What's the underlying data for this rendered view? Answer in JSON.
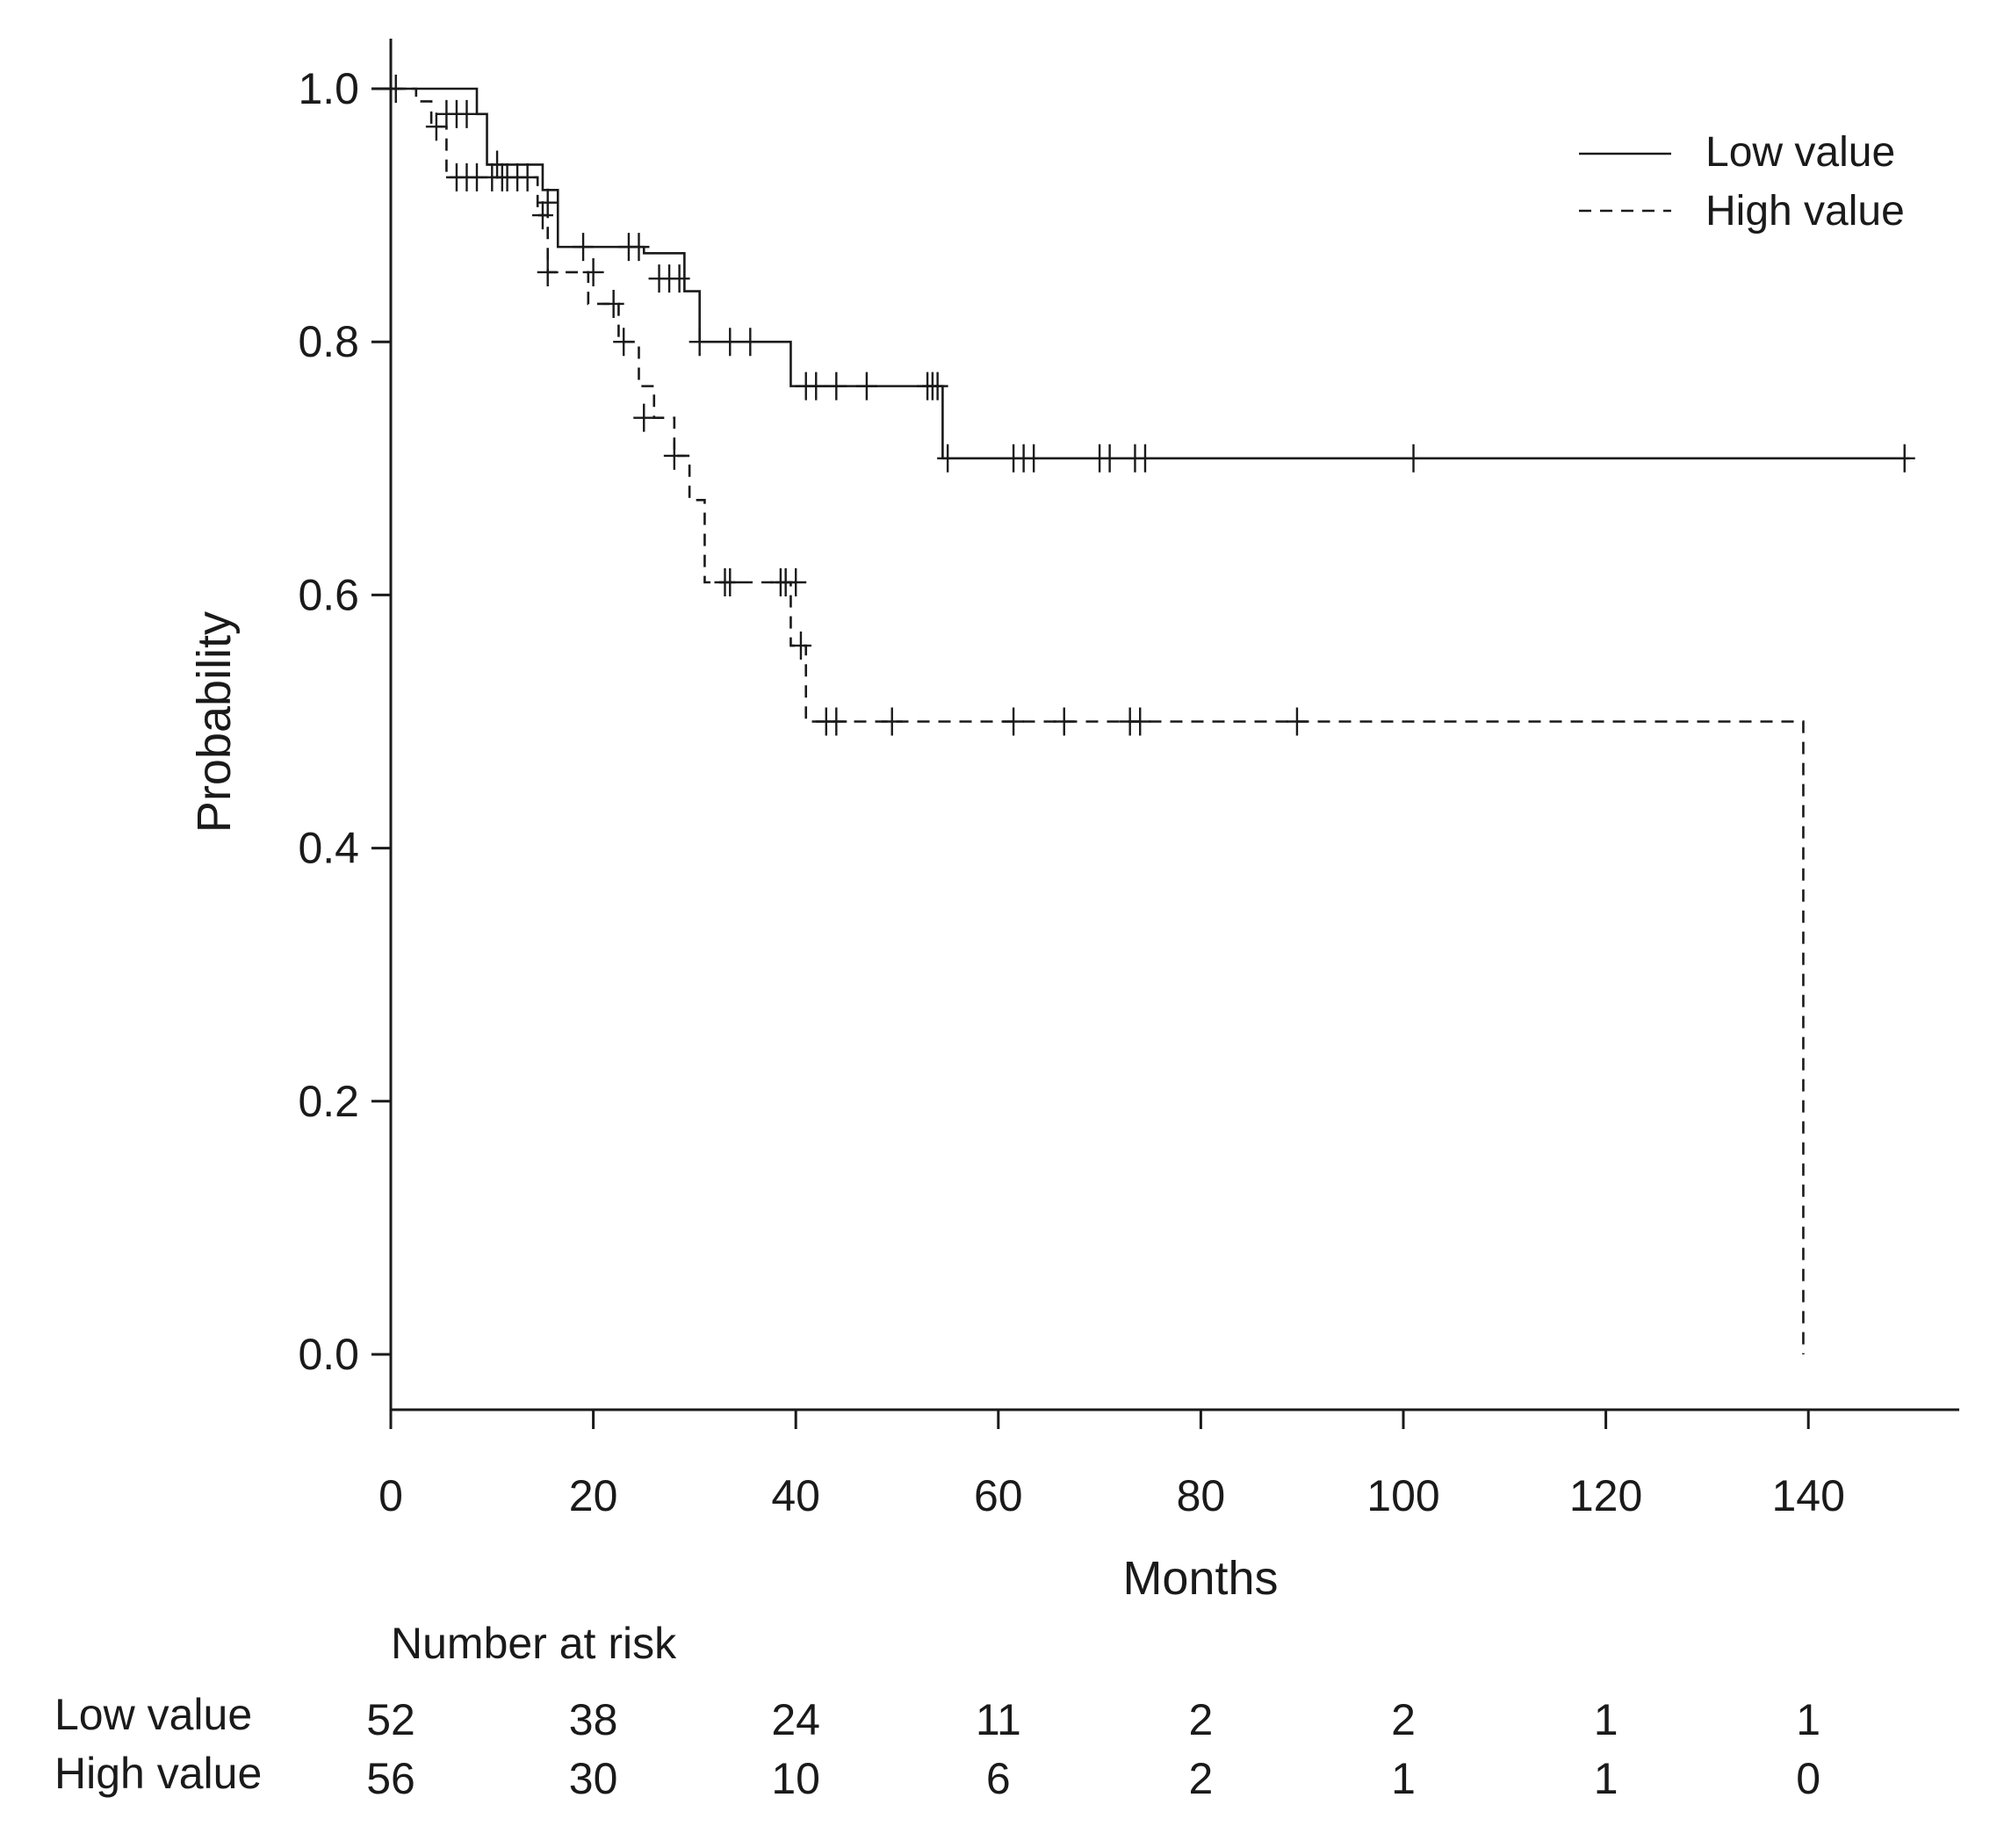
{
  "chart_data": {
    "type": "line",
    "subtype": "kaplan-meier",
    "title": "",
    "xlabel": "Months",
    "ylabel": "Probability",
    "xlim": [
      0,
      155
    ],
    "ylim": [
      -0.04,
      1.04
    ],
    "xticks": [
      "0",
      "20",
      "40",
      "60",
      "80",
      "100",
      "120",
      "140"
    ],
    "yticks": [
      "0.0",
      "0.2",
      "0.4",
      "0.6",
      "0.8",
      "1.0"
    ],
    "legend": {
      "position": "top-right",
      "entries": [
        "Low value",
        "High value"
      ]
    },
    "series": [
      {
        "name": "Low value",
        "line_style": "solid",
        "steps": [
          [
            0,
            1.0
          ],
          [
            8.5,
            0.98
          ],
          [
            9.5,
            0.94
          ],
          [
            15,
            0.92
          ],
          [
            16.5,
            0.875
          ],
          [
            25,
            0.87
          ],
          [
            29,
            0.84
          ],
          [
            30.5,
            0.8
          ],
          [
            39.5,
            0.765
          ],
          [
            54.5,
            0.708
          ],
          [
            150,
            0.708
          ]
        ],
        "censors": [
          [
            5.5,
            0.98
          ],
          [
            6.5,
            0.98
          ],
          [
            7.5,
            0.98
          ],
          [
            10.5,
            0.94
          ],
          [
            11.5,
            0.93
          ],
          [
            12.5,
            0.93
          ],
          [
            13.5,
            0.93
          ],
          [
            15.5,
            0.91
          ],
          [
            19,
            0.875
          ],
          [
            23.5,
            0.875
          ],
          [
            24.5,
            0.875
          ],
          [
            26.5,
            0.85
          ],
          [
            27.5,
            0.85
          ],
          [
            28.5,
            0.85
          ],
          [
            30.5,
            0.8
          ],
          [
            33.5,
            0.8
          ],
          [
            35.5,
            0.8
          ],
          [
            41,
            0.765
          ],
          [
            42,
            0.765
          ],
          [
            44,
            0.765
          ],
          [
            47,
            0.765
          ],
          [
            53,
            0.765
          ],
          [
            53.5,
            0.765
          ],
          [
            54,
            0.765
          ],
          [
            55,
            0.708
          ],
          [
            61.5,
            0.708
          ],
          [
            62.5,
            0.708
          ],
          [
            63.5,
            0.708
          ],
          [
            70,
            0.708
          ],
          [
            71,
            0.708
          ],
          [
            73.5,
            0.708
          ],
          [
            74.5,
            0.708
          ],
          [
            101,
            0.708
          ],
          [
            149.5,
            0.708
          ]
        ]
      },
      {
        "name": "High value",
        "line_style": "dashed",
        "steps": [
          [
            0,
            1.0
          ],
          [
            2.5,
            0.99
          ],
          [
            4,
            0.97
          ],
          [
            5.5,
            0.93
          ],
          [
            14.5,
            0.9
          ],
          [
            15.5,
            0.855
          ],
          [
            19.5,
            0.83
          ],
          [
            22.5,
            0.8
          ],
          [
            24.5,
            0.765
          ],
          [
            26,
            0.74
          ],
          [
            28,
            0.71
          ],
          [
            29.5,
            0.675
          ],
          [
            31,
            0.61
          ],
          [
            39.5,
            0.56
          ],
          [
            41,
            0.5
          ],
          [
            139.5,
            0.5
          ],
          [
            139.5,
            0.0
          ]
        ],
        "censors": [
          [
            0.5,
            1.0
          ],
          [
            4.5,
            0.97
          ],
          [
            6.5,
            0.93
          ],
          [
            7.5,
            0.93
          ],
          [
            8.5,
            0.93
          ],
          [
            10,
            0.93
          ],
          [
            11,
            0.93
          ],
          [
            15,
            0.9
          ],
          [
            15.5,
            0.855
          ],
          [
            20,
            0.855
          ],
          [
            22,
            0.83
          ],
          [
            23,
            0.8
          ],
          [
            25,
            0.74
          ],
          [
            28,
            0.71
          ],
          [
            33,
            0.61
          ],
          [
            33.5,
            0.61
          ],
          [
            38.5,
            0.61
          ],
          [
            39,
            0.61
          ],
          [
            40,
            0.61
          ],
          [
            40.5,
            0.56
          ],
          [
            43,
            0.5
          ],
          [
            44,
            0.5
          ],
          [
            49.5,
            0.5
          ],
          [
            61.5,
            0.5
          ],
          [
            66.5,
            0.5
          ],
          [
            73,
            0.5
          ],
          [
            74,
            0.5
          ],
          [
            89.5,
            0.5
          ]
        ]
      }
    ],
    "risk_table": {
      "title": "Number at risk",
      "times": [
        0,
        20,
        40,
        60,
        80,
        100,
        120,
        140
      ],
      "rows": [
        {
          "label": "Low value",
          "values": [
            "52",
            "38",
            "24",
            "11",
            "2",
            "2",
            "1",
            "1"
          ]
        },
        {
          "label": "High value",
          "values": [
            "56",
            "30",
            "10",
            "6",
            "2",
            "1",
            "1",
            "0"
          ]
        }
      ]
    }
  }
}
